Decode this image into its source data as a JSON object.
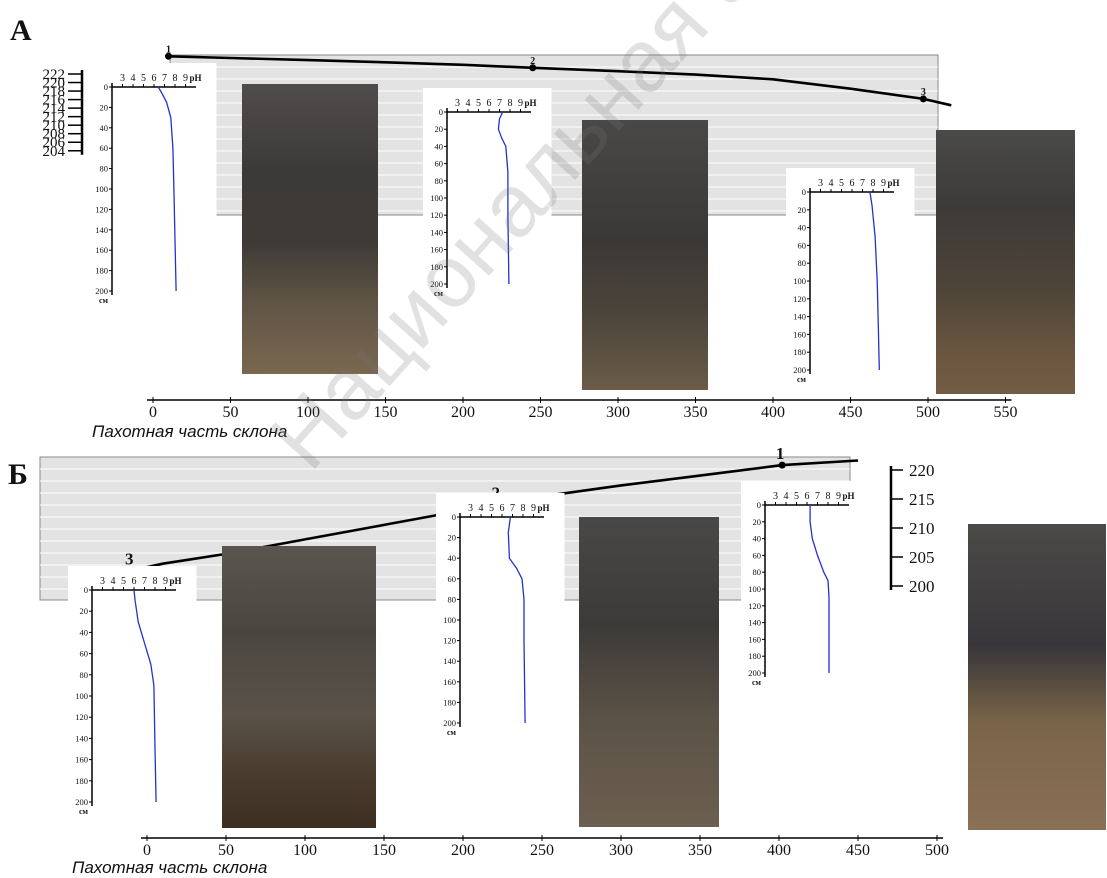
{
  "watermark": "Национальная академия",
  "colors": {
    "terrain": "#000000",
    "ph_line": "#2233cc",
    "panel_fill": "#e3e3e3",
    "grid": "#ffffff"
  },
  "panels": [
    {
      "id": "A",
      "letter": "А",
      "xlabel": "Пахотная часть склона",
      "x_ticks": [
        "0",
        "50",
        "100",
        "150",
        "200",
        "250",
        "300",
        "350",
        "400",
        "450",
        "500",
        "550"
      ],
      "elev_ticks": [
        "222",
        "220",
        "218",
        "216",
        "214",
        "212",
        "210",
        "208",
        "206",
        "204"
      ],
      "profile_points": [
        {
          "x": 10,
          "y": 223.0
        },
        {
          "x": 50,
          "y": 222.6
        },
        {
          "x": 100,
          "y": 222.1
        },
        {
          "x": 150,
          "y": 221.6
        },
        {
          "x": 200,
          "y": 221.0
        },
        {
          "x": 245,
          "y": 220.3
        },
        {
          "x": 300,
          "y": 219.5
        },
        {
          "x": 350,
          "y": 218.7
        },
        {
          "x": 400,
          "y": 217.6
        },
        {
          "x": 450,
          "y": 215.4
        },
        {
          "x": 497,
          "y": 213.0
        },
        {
          "x": 515,
          "y": 211.5
        }
      ],
      "points": [
        {
          "label": "1",
          "x": 10
        },
        {
          "label": "2",
          "x": 245
        },
        {
          "label": "3",
          "x": 497
        }
      ],
      "ph_ticks": [
        "3",
        "4",
        "5",
        "6",
        "7",
        "8",
        "9"
      ],
      "ph_unit": "pH",
      "depth_ticks": [
        "0",
        "20",
        "40",
        "60",
        "80",
        "100",
        "120",
        "140",
        "160",
        "180",
        "200"
      ],
      "depth_unit": "см",
      "ph_curves": [
        [
          [
            6.4,
            0
          ],
          [
            6.7,
            5
          ],
          [
            7.2,
            15
          ],
          [
            7.6,
            30
          ],
          [
            7.8,
            60
          ],
          [
            7.9,
            100
          ],
          [
            8.0,
            150
          ],
          [
            8.1,
            200
          ]
        ],
        [
          [
            7.3,
            0
          ],
          [
            7.0,
            8
          ],
          [
            6.9,
            20
          ],
          [
            7.2,
            30
          ],
          [
            7.6,
            40
          ],
          [
            7.8,
            70
          ],
          [
            7.8,
            120
          ],
          [
            7.9,
            200
          ]
        ],
        [
          [
            7.7,
            0
          ],
          [
            7.9,
            15
          ],
          [
            8.2,
            50
          ],
          [
            8.4,
            100
          ],
          [
            8.5,
            150
          ],
          [
            8.6,
            200
          ]
        ]
      ]
    },
    {
      "id": "B",
      "letter": "Б",
      "xlabel": "Пахотная часть склона",
      "x_ticks": [
        "0",
        "50",
        "100",
        "150",
        "200",
        "250",
        "300",
        "350",
        "400",
        "450",
        "500"
      ],
      "elev_ticks": [
        "220",
        "215",
        "210",
        "205",
        "200"
      ],
      "profile_points": [
        {
          "x": -10,
          "y": 201.6
        },
        {
          "x": 10,
          "y": 202.8
        },
        {
          "x": 50,
          "y": 204.5
        },
        {
          "x": 100,
          "y": 207.0
        },
        {
          "x": 150,
          "y": 209.5
        },
        {
          "x": 200,
          "y": 212.0
        },
        {
          "x": 222,
          "y": 213.0
        },
        {
          "x": 250,
          "y": 214.4
        },
        {
          "x": 300,
          "y": 216.3
        },
        {
          "x": 350,
          "y": 218.0
        },
        {
          "x": 402,
          "y": 219.8
        },
        {
          "x": 450,
          "y": 220.6
        }
      ],
      "points": [
        {
          "label": "1",
          "x": 402
        },
        {
          "label": "2",
          "x": 222
        },
        {
          "label": "3",
          "x": -10
        }
      ],
      "ph_ticks": [
        "3",
        "4",
        "5",
        "6",
        "7",
        "8",
        "9"
      ],
      "ph_unit": "pH",
      "depth_ticks": [
        "0",
        "20",
        "40",
        "60",
        "80",
        "100",
        "120",
        "140",
        "160",
        "180",
        "200"
      ],
      "depth_unit": "см",
      "ph_curves": [
        [
          [
            6.3,
            0
          ],
          [
            6.3,
            20
          ],
          [
            6.5,
            40
          ],
          [
            7.0,
            60
          ],
          [
            7.6,
            80
          ],
          [
            8.0,
            90
          ],
          [
            8.1,
            110
          ],
          [
            8.1,
            150
          ],
          [
            8.1,
            200
          ]
        ],
        [
          [
            6.8,
            0
          ],
          [
            6.6,
            15
          ],
          [
            6.7,
            40
          ],
          [
            7.4,
            50
          ],
          [
            7.9,
            60
          ],
          [
            8.1,
            80
          ],
          [
            8.1,
            120
          ],
          [
            8.2,
            200
          ]
        ],
        [
          [
            6.0,
            0
          ],
          [
            6.1,
            10
          ],
          [
            6.4,
            30
          ],
          [
            7.0,
            50
          ],
          [
            7.6,
            70
          ],
          [
            7.9,
            90
          ],
          [
            8.0,
            150
          ],
          [
            8.1,
            200
          ]
        ]
      ]
    }
  ]
}
